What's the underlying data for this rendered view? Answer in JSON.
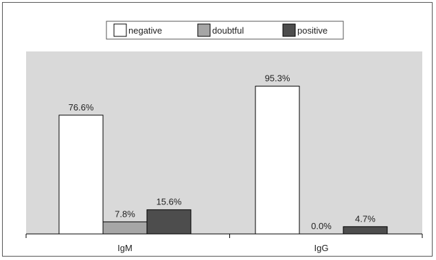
{
  "chart_data": {
    "type": "bar",
    "categories": [
      "IgM",
      "IgG"
    ],
    "series": [
      {
        "name": "negative",
        "values": [
          76.6,
          95.3
        ],
        "color": "#ffffff"
      },
      {
        "name": "doubtful",
        "values": [
          7.8,
          0.0
        ],
        "color": "#a6a6a6"
      },
      {
        "name": "positive",
        "values": [
          15.6,
          4.7
        ],
        "color": "#4d4d4d"
      }
    ],
    "data_labels": [
      [
        "76.6%",
        "95.3%"
      ],
      [
        "7.8%",
        "0.0%"
      ],
      [
        "15.6%",
        "4.7%"
      ]
    ],
    "ylim": [
      0,
      100
    ],
    "title": "",
    "xlabel": "",
    "ylabel": "",
    "legend_position": "top-center",
    "plot_background": "#d9d9d9",
    "grid": false
  }
}
